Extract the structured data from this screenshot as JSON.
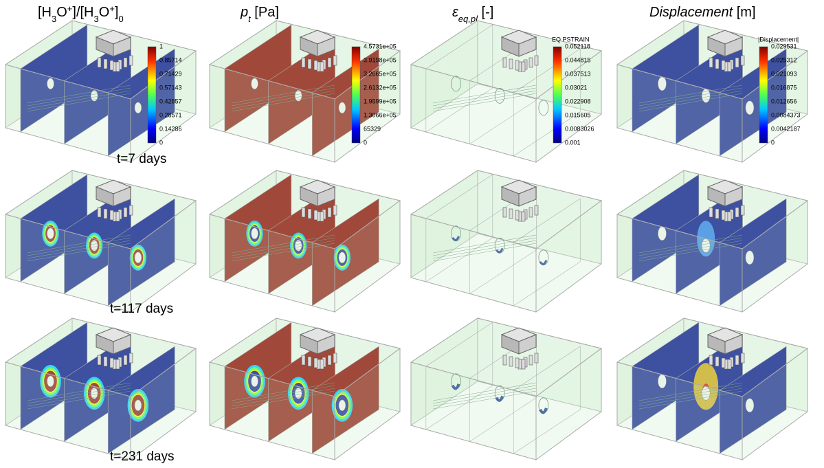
{
  "headers": [
    {
      "parts": [
        "[H",
        "3",
        "O",
        "+",
        "]/[H",
        "3",
        "O",
        "+",
        "]",
        "0"
      ]
    },
    {
      "symbol": "p",
      "sub": "t",
      "unit": " [Pa]"
    },
    {
      "symbol": "ε",
      "sub": "eq,pl",
      "unit": " [-]"
    },
    {
      "symbol": "Displacement",
      "unit": " [m]"
    }
  ],
  "legends": [
    {
      "labels": [
        "1",
        "0.85714",
        "0.71429",
        "0.57143",
        "0.42857",
        "0.28571",
        "0.14286",
        "0"
      ]
    },
    {
      "labels": [
        "4.5731e+05",
        "3.9198e+05",
        "3.2665e+05",
        "2.6132e+05",
        "1.9599e+05",
        "1.3066e+05",
        "65329",
        "0"
      ]
    },
    {
      "title": "EQ PSTRAIN",
      "labels": [
        "0.052118",
        "0.044815",
        "0.037513",
        "0.03021",
        "0.022908",
        "0.015605",
        "0.0083026",
        "0.001"
      ]
    },
    {
      "title": "|Displacement|",
      "labels": [
        "0.029531",
        "0.025312",
        "0.021093",
        "0.016875",
        "0.012656",
        "0.0084373",
        "0.0042187",
        "0"
      ]
    }
  ],
  "times": [
    "t=7 days",
    "t=117 days",
    "t=231 days"
  ]
}
